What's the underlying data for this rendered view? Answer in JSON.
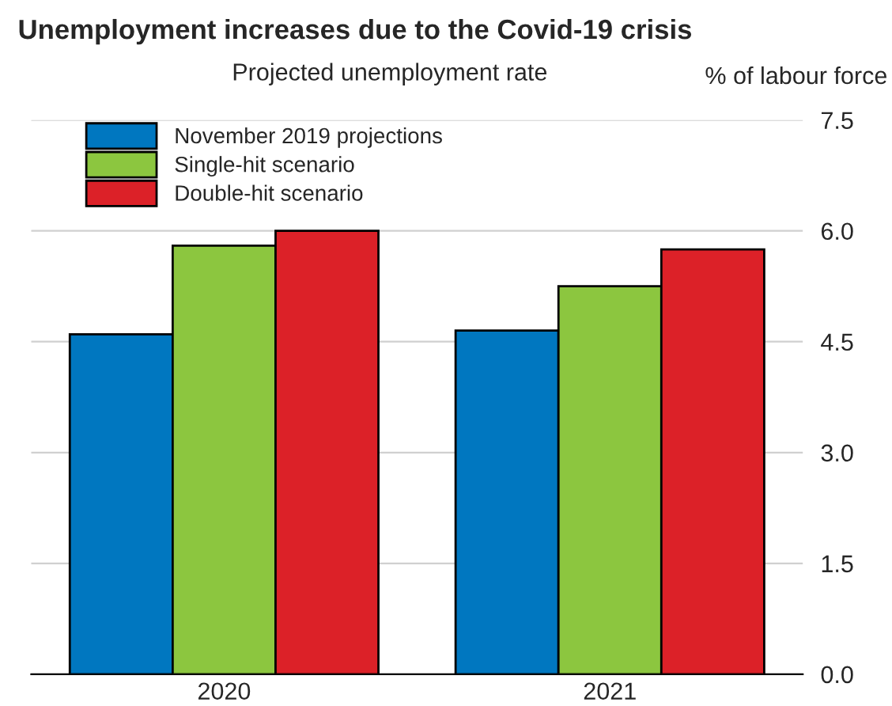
{
  "chart_data": {
    "type": "bar",
    "title": "Unemployment increases due to the Covid-19 crisis",
    "subtitle": "Projected unemployment rate",
    "ylabel": "% of labour force",
    "categories": [
      "2020",
      "2021"
    ],
    "series": [
      {
        "name": "November 2019 projections",
        "color": "#0077c0",
        "values": [
          4.6,
          4.65
        ]
      },
      {
        "name": "Single-hit scenario",
        "color": "#8cc63f",
        "values": [
          5.8,
          5.25
        ]
      },
      {
        "name": "Double-hit scenario",
        "color": "#dc2128",
        "values": [
          6.0,
          5.75
        ]
      }
    ],
    "ylim": [
      0,
      7.5
    ],
    "yticks": [
      {
        "value": 0,
        "label": "0.0"
      },
      {
        "value": 1.5,
        "label": "1.5"
      },
      {
        "value": 3,
        "label": "3.0"
      },
      {
        "value": 4.5,
        "label": "4.5"
      },
      {
        "value": 6,
        "label": "6.0"
      },
      {
        "value": 7.5,
        "label": "7.5"
      }
    ],
    "grid": "y",
    "legend": "top left"
  }
}
